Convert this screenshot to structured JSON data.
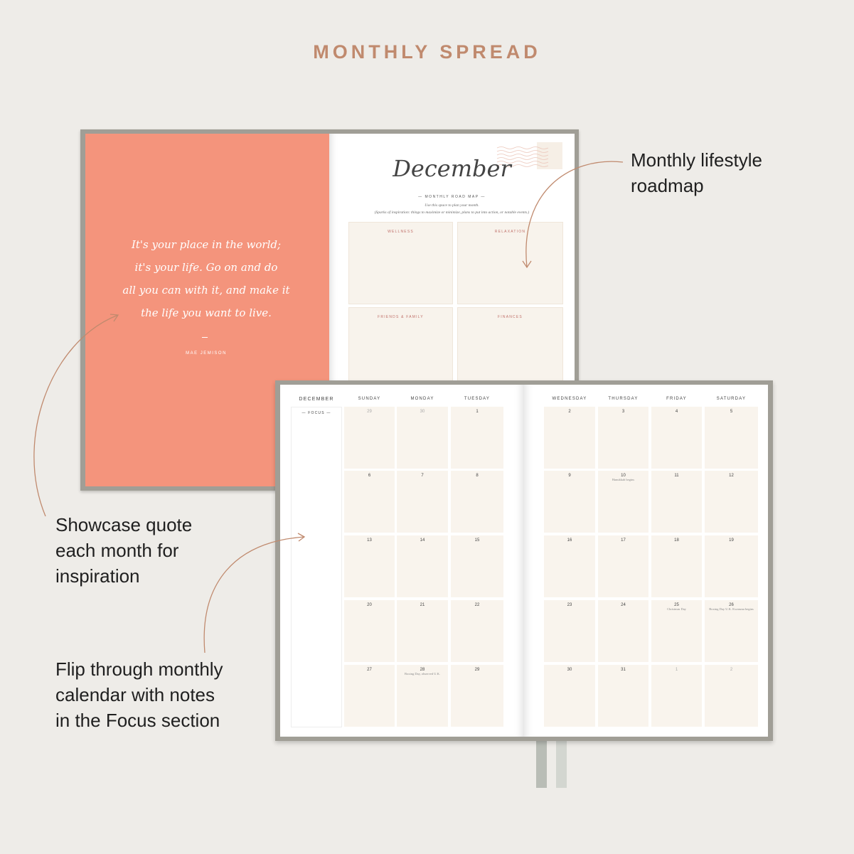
{
  "title": "MONTHLY SPREAD",
  "annotations": {
    "roadmap": [
      "Monthly lifestyle",
      "roadmap"
    ],
    "quote": [
      "Showcase quote",
      "each month for",
      "inspiration"
    ],
    "calendar": [
      "Flip through monthly",
      "calendar with notes",
      "in the Focus section"
    ]
  },
  "colors": {
    "accent": "#c08a6e",
    "coral": "#f4947c",
    "cover": "#a09e96",
    "cell": "#f9f4ed"
  },
  "quote_page": {
    "lines": [
      "It's your place in the world;",
      "it's your life. Go on and do",
      "all you can with it, and make it",
      "the life you want to live."
    ],
    "author": "MAE JEMISON"
  },
  "roadmap_page": {
    "month": "December",
    "subtitle": "MONTHLY ROAD MAP",
    "intro1": "Use this space to plan your month.",
    "intro2": "(Sparks of inspiration: things to maximize or minimize, plans to put into action, or notable events.)",
    "sections": [
      "WELLNESS",
      "RELAXATION",
      "FRIENDS & FAMILY",
      "FINANCES"
    ]
  },
  "calendar": {
    "month": "DECEMBER",
    "focus_label": "FOCUS",
    "days_left": [
      "SUNDAY",
      "MONDAY",
      "TUESDAY"
    ],
    "days_right": [
      "WEDNESDAY",
      "THURSDAY",
      "FRIDAY",
      "SATURDAY"
    ],
    "weeks": [
      [
        {
          "d": "29",
          "muted": true
        },
        {
          "d": "30",
          "muted": true
        },
        {
          "d": "1"
        },
        {
          "d": "2"
        },
        {
          "d": "3"
        },
        {
          "d": "4"
        },
        {
          "d": "5"
        }
      ],
      [
        {
          "d": "6"
        },
        {
          "d": "7"
        },
        {
          "d": "8"
        },
        {
          "d": "9"
        },
        {
          "d": "10",
          "note": "Hanukkah begins"
        },
        {
          "d": "11"
        },
        {
          "d": "12"
        }
      ],
      [
        {
          "d": "13"
        },
        {
          "d": "14"
        },
        {
          "d": "15"
        },
        {
          "d": "16"
        },
        {
          "d": "17"
        },
        {
          "d": "18"
        },
        {
          "d": "19"
        }
      ],
      [
        {
          "d": "20"
        },
        {
          "d": "21"
        },
        {
          "d": "22"
        },
        {
          "d": "23"
        },
        {
          "d": "24"
        },
        {
          "d": "25",
          "note": "Christmas Day"
        },
        {
          "d": "26",
          "note": "Boxing Day U.K. Kwanzaa begins"
        }
      ],
      [
        {
          "d": "27"
        },
        {
          "d": "28",
          "note": "Boxing Day, observed U.K."
        },
        {
          "d": "29"
        },
        {
          "d": "30"
        },
        {
          "d": "31"
        },
        {
          "d": "1",
          "muted": true
        },
        {
          "d": "2",
          "muted": true
        }
      ]
    ]
  }
}
